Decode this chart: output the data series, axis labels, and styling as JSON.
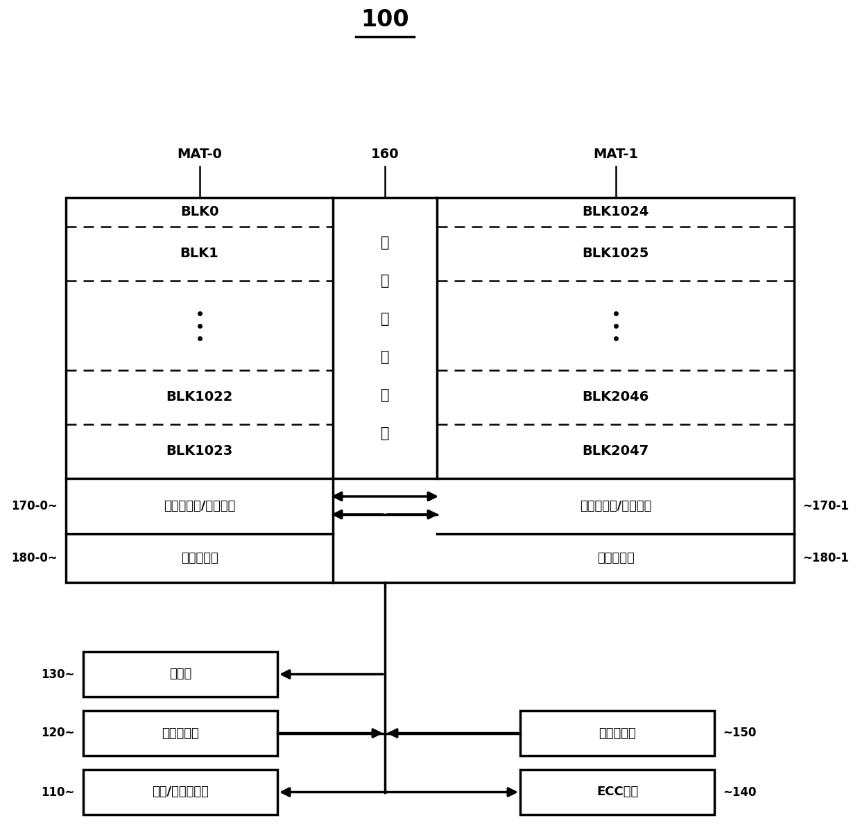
{
  "title": "100",
  "bg_color": "#ffffff",
  "fg_color": "#000000",
  "mat0_label": "MAT-0",
  "mat1_label": "MAT-1",
  "wl_label": "160",
  "wl_text_chars": [
    "字",
    "线",
    "选",
    "择",
    "电",
    "路"
  ],
  "blk_left": [
    "BLK0",
    "BLK1",
    "BLK1022",
    "BLK1023"
  ],
  "blk_right": [
    "BLK1024",
    "BLK1025",
    "BLK2046",
    "BLK2047"
  ],
  "page_buf_text": "页面缓冲器/读出电路",
  "col_sel_text": "列选择电路",
  "ctrl_text": "控制部",
  "addr_text": "地址寄存器",
  "io_text": "输入/输出缓冲器",
  "fwd_text": "转发控制部",
  "ecc_text": "ECC电路",
  "label_170_0": "170-0",
  "label_170_1": "170-1",
  "label_180_0": "180-0",
  "label_180_1": "180-1",
  "label_130": "130",
  "label_120": "120",
  "label_110": "110",
  "label_150": "150",
  "label_140": "140"
}
